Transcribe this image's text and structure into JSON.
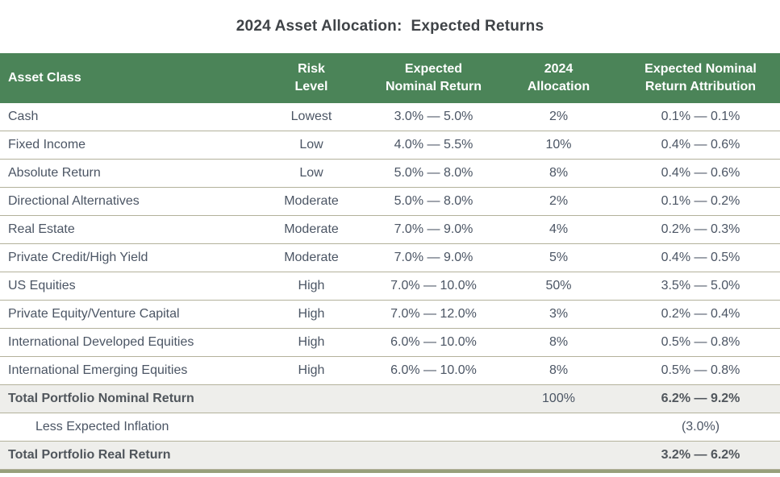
{
  "title": "2024 Asset Allocation:  Expected Returns",
  "colors": {
    "header_bg": "#4b8458",
    "header_text": "#ffffff",
    "body_text": "#4b5564",
    "title_text": "#3f4347",
    "row_border": "#b3b19b",
    "total_row_bg": "#eeeeeb",
    "bottom_bar": "#97a07b"
  },
  "chart_data": {
    "type": "table",
    "title": "2024 Asset Allocation:  Expected Returns",
    "columns": [
      "Asset Class",
      "Risk Level",
      "Expected Nominal Return",
      "2024 Allocation",
      "Expected Nominal Return Attribution"
    ],
    "rows": [
      [
        "Cash",
        "Lowest",
        "3.0% — 5.0%",
        "2%",
        "0.1% — 0.1%"
      ],
      [
        "Fixed Income",
        "Low",
        "4.0% — 5.5%",
        "10%",
        "0.4% — 0.6%"
      ],
      [
        "Absolute Return",
        "Low",
        "5.0% — 8.0%",
        "8%",
        "0.4% — 0.6%"
      ],
      [
        "Directional Alternatives",
        "Moderate",
        "5.0% — 8.0%",
        "2%",
        "0.1% — 0.2%"
      ],
      [
        "Real Estate",
        "Moderate",
        "7.0% — 9.0%",
        "4%",
        "0.2% — 0.3%"
      ],
      [
        "Private Credit/High Yield",
        "Moderate",
        "7.0% — 9.0%",
        "5%",
        "0.4% — 0.5%"
      ],
      [
        "US Equities",
        "High",
        "7.0% — 10.0%",
        "50%",
        "3.5% — 5.0%"
      ],
      [
        "Private Equity/Venture Capital",
        "High",
        "7.0% — 12.0%",
        "3%",
        "0.2% — 0.4%"
      ],
      [
        "International Developed Equities",
        "High",
        "6.0% — 10.0%",
        "8%",
        "0.5% — 0.8%"
      ],
      [
        "International Emerging Equities",
        "High",
        "6.0% — 10.0%",
        "8%",
        "0.5% — 0.8%"
      ]
    ],
    "summary_rows": [
      {
        "label": "Total Portfolio Nominal Return",
        "allocation": "100%",
        "attribution": "6.2% — 9.2%"
      },
      {
        "label": "Less Expected Inflation",
        "allocation": "",
        "attribution": "(3.0%)"
      },
      {
        "label": "Total Portfolio Real Return",
        "allocation": "",
        "attribution": "3.2% — 6.2%"
      }
    ]
  }
}
